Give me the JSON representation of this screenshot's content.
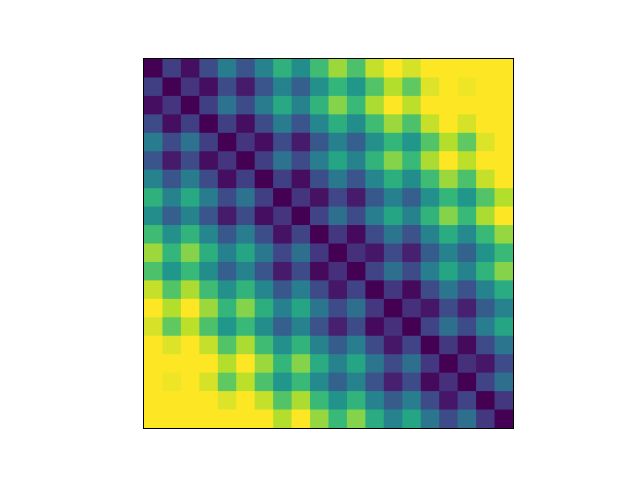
{
  "chart_data": {
    "type": "heatmap",
    "colormap": "viridis",
    "clim": [
      0,
      0.8
    ],
    "z": [
      [
        0,
        0.15,
        0.03,
        0.18,
        0.33,
        0.21,
        0.36,
        0.51,
        0.39,
        0.55,
        0.68,
        0.57,
        0.73,
        0.86,
        0.75,
        0.91,
        1.04,
        0.93,
        1.09,
        1.22
      ],
      [
        0.15,
        0,
        0.12,
        0.03,
        0.18,
        0.06,
        0.21,
        0.36,
        0.24,
        0.4,
        0.53,
        0.42,
        0.58,
        0.71,
        0.6,
        0.76,
        0.89,
        0.78,
        0.94,
        1.07
      ],
      [
        0.03,
        0.12,
        0,
        0.15,
        0.3,
        0.18,
        0.33,
        0.48,
        0.36,
        0.52,
        0.65,
        0.54,
        0.7,
        0.83,
        0.72,
        0.88,
        1.01,
        0.9,
        1.06,
        1.19
      ],
      [
        0.18,
        0.03,
        0.15,
        0,
        0.15,
        0.03,
        0.18,
        0.33,
        0.21,
        0.37,
        0.5,
        0.39,
        0.55,
        0.68,
        0.57,
        0.73,
        0.86,
        0.75,
        0.91,
        1.04
      ],
      [
        0.33,
        0.18,
        0.3,
        0.15,
        0,
        0.12,
        0.03,
        0.18,
        0.06,
        0.22,
        0.35,
        0.24,
        0.4,
        0.53,
        0.42,
        0.58,
        0.71,
        0.6,
        0.76,
        0.89
      ],
      [
        0.21,
        0.06,
        0.18,
        0.03,
        0.12,
        0,
        0.15,
        0.3,
        0.18,
        0.34,
        0.47,
        0.36,
        0.52,
        0.65,
        0.54,
        0.7,
        0.83,
        0.72,
        0.88,
        1.01
      ],
      [
        0.36,
        0.21,
        0.33,
        0.18,
        0.03,
        0.15,
        0,
        0.15,
        0.03,
        0.19,
        0.32,
        0.21,
        0.37,
        0.5,
        0.39,
        0.55,
        0.68,
        0.57,
        0.73,
        0.86
      ],
      [
        0.51,
        0.36,
        0.48,
        0.33,
        0.18,
        0.3,
        0.15,
        0,
        0.12,
        0.04,
        0.17,
        0.06,
        0.22,
        0.35,
        0.24,
        0.4,
        0.53,
        0.42,
        0.58,
        0.71
      ],
      [
        0.39,
        0.24,
        0.36,
        0.21,
        0.06,
        0.18,
        0.03,
        0.12,
        0,
        0.16,
        0.29,
        0.18,
        0.34,
        0.47,
        0.36,
        0.52,
        0.65,
        0.54,
        0.7,
        0.83
      ],
      [
        0.55,
        0.4,
        0.52,
        0.37,
        0.22,
        0.34,
        0.19,
        0.04,
        0.16,
        0,
        0.13,
        0.02,
        0.18,
        0.31,
        0.2,
        0.36,
        0.49,
        0.38,
        0.54,
        0.67
      ],
      [
        0.68,
        0.53,
        0.65,
        0.5,
        0.35,
        0.47,
        0.32,
        0.17,
        0.29,
        0.13,
        0,
        0.11,
        0.05,
        0.18,
        0.07,
        0.23,
        0.36,
        0.25,
        0.41,
        0.54
      ],
      [
        0.57,
        0.42,
        0.54,
        0.39,
        0.24,
        0.36,
        0.21,
        0.06,
        0.18,
        0.02,
        0.11,
        0,
        0.16,
        0.29,
        0.18,
        0.34,
        0.47,
        0.36,
        0.52,
        0.65
      ],
      [
        0.73,
        0.58,
        0.7,
        0.55,
        0.4,
        0.52,
        0.37,
        0.22,
        0.34,
        0.18,
        0.05,
        0.16,
        0,
        0.13,
        0.02,
        0.18,
        0.31,
        0.2,
        0.36,
        0.49
      ],
      [
        0.86,
        0.71,
        0.83,
        0.68,
        0.53,
        0.65,
        0.5,
        0.35,
        0.47,
        0.31,
        0.18,
        0.29,
        0.13,
        0,
        0.11,
        0.05,
        0.18,
        0.07,
        0.23,
        0.36
      ],
      [
        0.75,
        0.6,
        0.72,
        0.57,
        0.42,
        0.54,
        0.39,
        0.24,
        0.36,
        0.2,
        0.07,
        0.18,
        0.02,
        0.11,
        0,
        0.16,
        0.29,
        0.18,
        0.34,
        0.47
      ],
      [
        0.91,
        0.76,
        0.88,
        0.73,
        0.58,
        0.7,
        0.55,
        0.4,
        0.52,
        0.36,
        0.23,
        0.34,
        0.18,
        0.05,
        0.16,
        0,
        0.13,
        0.02,
        0.18,
        0.31
      ],
      [
        1.04,
        0.89,
        1.01,
        0.86,
        0.71,
        0.83,
        0.68,
        0.53,
        0.65,
        0.49,
        0.36,
        0.47,
        0.31,
        0.18,
        0.29,
        0.13,
        0,
        0.11,
        0.05,
        0.18
      ],
      [
        0.93,
        0.78,
        0.9,
        0.75,
        0.6,
        0.72,
        0.57,
        0.42,
        0.54,
        0.38,
        0.25,
        0.36,
        0.2,
        0.07,
        0.18,
        0.02,
        0.11,
        0,
        0.16,
        0.29
      ],
      [
        1.09,
        0.94,
        1.06,
        0.91,
        0.76,
        0.88,
        0.73,
        0.58,
        0.7,
        0.54,
        0.41,
        0.52,
        0.36,
        0.23,
        0.34,
        0.18,
        0.05,
        0.16,
        0,
        0.13
      ],
      [
        1.22,
        1.07,
        1.19,
        1.04,
        0.89,
        1.01,
        0.86,
        0.71,
        0.83,
        0.67,
        0.54,
        0.65,
        0.49,
        0.36,
        0.47,
        0.31,
        0.18,
        0.29,
        0.13,
        0
      ]
    ]
  }
}
